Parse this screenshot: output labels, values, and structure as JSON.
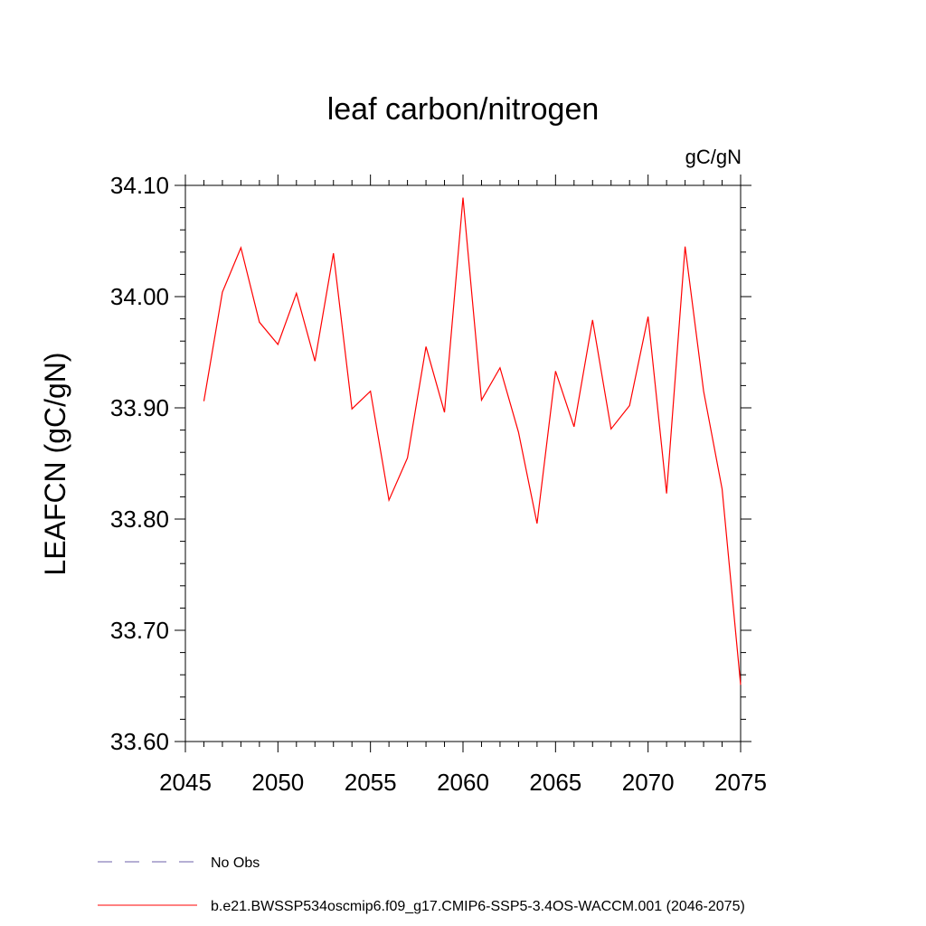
{
  "chart_data": {
    "type": "line",
    "title": "leaf carbon/nitrogen",
    "units_label": "gC/gN",
    "ylabel": "LEAFCN  (gC/gN)",
    "xlabel": "",
    "xlim": [
      2045,
      2075
    ],
    "ylim": [
      33.6,
      34.1
    ],
    "x_ticks": [
      2045,
      2050,
      2055,
      2060,
      2065,
      2070,
      2075
    ],
    "x_tick_labels": [
      "2045",
      "2050",
      "2055",
      "2060",
      "2065",
      "2070",
      "2075"
    ],
    "y_ticks": [
      33.6,
      33.7,
      33.8,
      33.9,
      34.0,
      34.1
    ],
    "y_tick_labels": [
      "33.60",
      "33.70",
      "33.80",
      "33.90",
      "34.00",
      "34.10"
    ],
    "grid": false,
    "series": [
      {
        "name": "b.e21.BWSSP534oscmip6.f09_g17.CMIP6-SSP5-3.4OS-WACCM.001 (2046-2075)",
        "color": "#ff0000",
        "x": [
          2046,
          2047,
          2048,
          2049,
          2050,
          2051,
          2052,
          2053,
          2054,
          2055,
          2056,
          2057,
          2058,
          2059,
          2060,
          2061,
          2062,
          2063,
          2064,
          2065,
          2066,
          2067,
          2068,
          2069,
          2070,
          2071,
          2072,
          2073,
          2074,
          2075
        ],
        "values": [
          33.906,
          34.004,
          34.044,
          33.977,
          33.957,
          34.003,
          33.942,
          34.039,
          33.899,
          33.915,
          33.817,
          33.855,
          33.955,
          33.896,
          34.089,
          33.907,
          33.936,
          33.878,
          33.796,
          33.933,
          33.883,
          33.979,
          33.881,
          33.902,
          33.982,
          33.823,
          34.045,
          33.915,
          33.827,
          33.651
        ]
      }
    ],
    "legend": [
      {
        "label": "No Obs",
        "style": "dashed",
        "color": "#6b5fa8"
      },
      {
        "label": "b.e21.BWSSP534oscmip6.f09_g17.CMIP6-SSP5-3.4OS-WACCM.001 (2046-2075)",
        "style": "solid",
        "color": "#ff0000"
      }
    ]
  }
}
